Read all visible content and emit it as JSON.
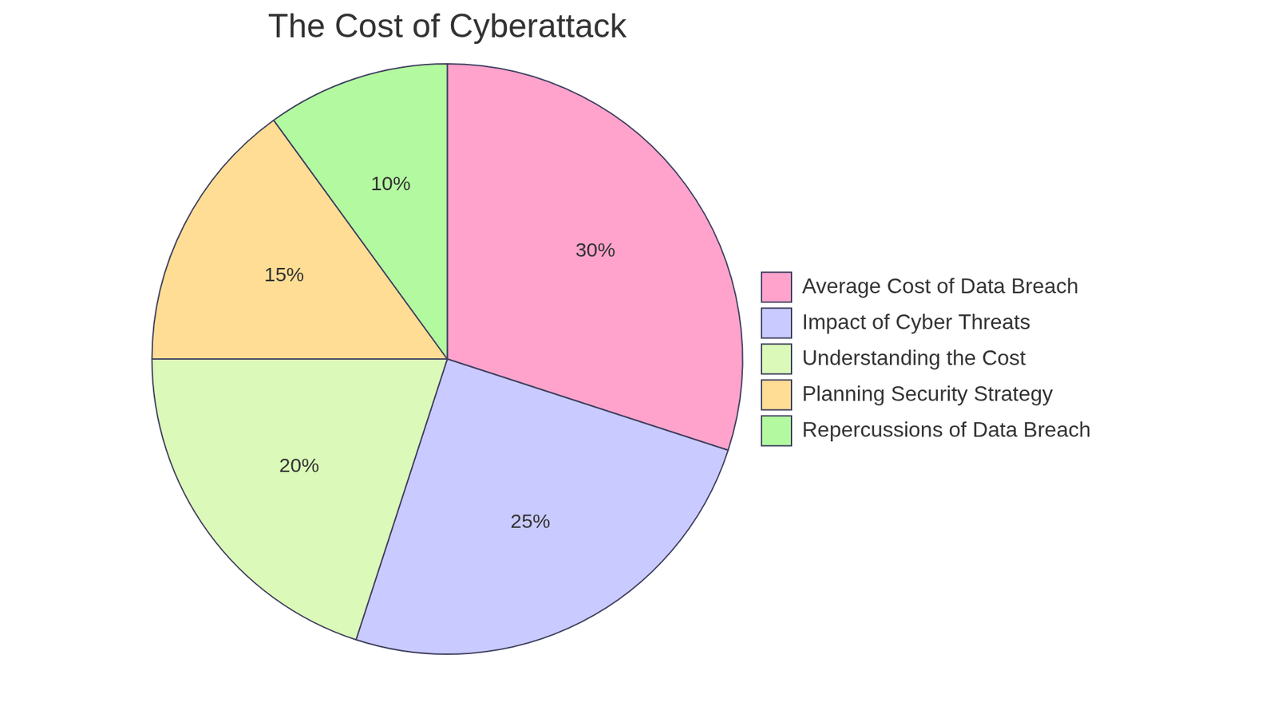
{
  "chart_data": {
    "type": "pie",
    "title": "The Cost of Cyberattack",
    "categories": [
      "Average Cost of Data Breach",
      "Impact of Cyber Threats",
      "Understanding the Cost",
      "Planning Security Strategy",
      "Repercussions of Data Breach"
    ],
    "values": [
      30,
      25,
      20,
      15,
      10
    ],
    "value_labels": [
      "30%",
      "25%",
      "20%",
      "15%",
      "10%"
    ],
    "colors": [
      "#ffa3cc",
      "#c9caff",
      "#dbf9b8",
      "#ffdd94",
      "#b3f9a0"
    ],
    "legend": "right",
    "data_labels": true
  }
}
